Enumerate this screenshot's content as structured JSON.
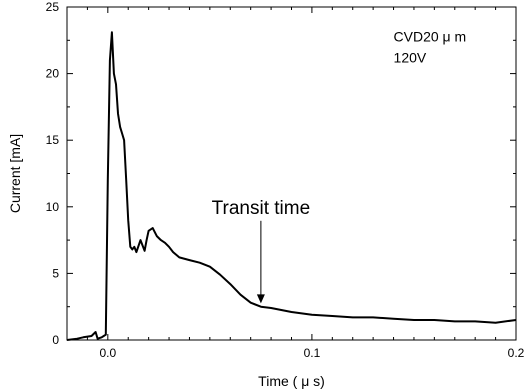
{
  "chart_data": {
    "type": "line",
    "title": "",
    "xlabel": "Time  ( μ s)",
    "ylabel": "Current [mA]",
    "xlim": [
      -0.02,
      0.2
    ],
    "ylim": [
      0,
      25
    ],
    "grid": false,
    "x_ticks": [
      0.0,
      0.1,
      0.2
    ],
    "x_tick_labels": [
      "0.0",
      "0.1",
      "0.2"
    ],
    "y_ticks": [
      0,
      5,
      10,
      15,
      20,
      25
    ],
    "y_tick_labels": [
      "0",
      "5",
      "10",
      "15",
      "20",
      "25"
    ],
    "series": [
      {
        "name": "",
        "color": "#000000",
        "x": [
          -0.02,
          -0.015,
          -0.012,
          -0.008,
          -0.006,
          -0.005,
          -0.003,
          -0.002,
          -0.001,
          0.0,
          0.001,
          0.002,
          0.003,
          0.004,
          0.005,
          0.006,
          0.007,
          0.008,
          0.009,
          0.01,
          0.011,
          0.012,
          0.013,
          0.014,
          0.016,
          0.018,
          0.019,
          0.02,
          0.022,
          0.024,
          0.026,
          0.028,
          0.03,
          0.032,
          0.035,
          0.04,
          0.045,
          0.05,
          0.055,
          0.06,
          0.065,
          0.07,
          0.075,
          0.08,
          0.09,
          0.1,
          0.11,
          0.12,
          0.13,
          0.14,
          0.15,
          0.16,
          0.17,
          0.18,
          0.19,
          0.2
        ],
        "y": [
          0.0,
          0.1,
          0.2,
          0.3,
          0.6,
          0.1,
          0.2,
          0.3,
          0.4,
          12.0,
          21.0,
          23.1,
          20.0,
          19.2,
          17.0,
          16.0,
          15.5,
          15.0,
          12.0,
          9.0,
          7.0,
          6.8,
          7.0,
          6.6,
          7.5,
          6.7,
          7.5,
          8.2,
          8.4,
          7.8,
          7.5,
          7.3,
          7.0,
          6.6,
          6.2,
          6.0,
          5.8,
          5.5,
          4.9,
          4.2,
          3.4,
          2.8,
          2.5,
          2.4,
          2.1,
          1.9,
          1.8,
          1.7,
          1.7,
          1.6,
          1.5,
          1.5,
          1.4,
          1.4,
          1.3,
          1.5
        ]
      }
    ],
    "annotations": [
      {
        "text": "CVD20 μ m",
        "x": 0.14,
        "y": 22.8
      },
      {
        "text": "120V",
        "x": 0.14,
        "y": 21.2
      },
      {
        "text": "Transit time",
        "x": 0.075,
        "y": 10.0,
        "arrow_to": [
          0.075,
          2.6
        ]
      }
    ]
  }
}
